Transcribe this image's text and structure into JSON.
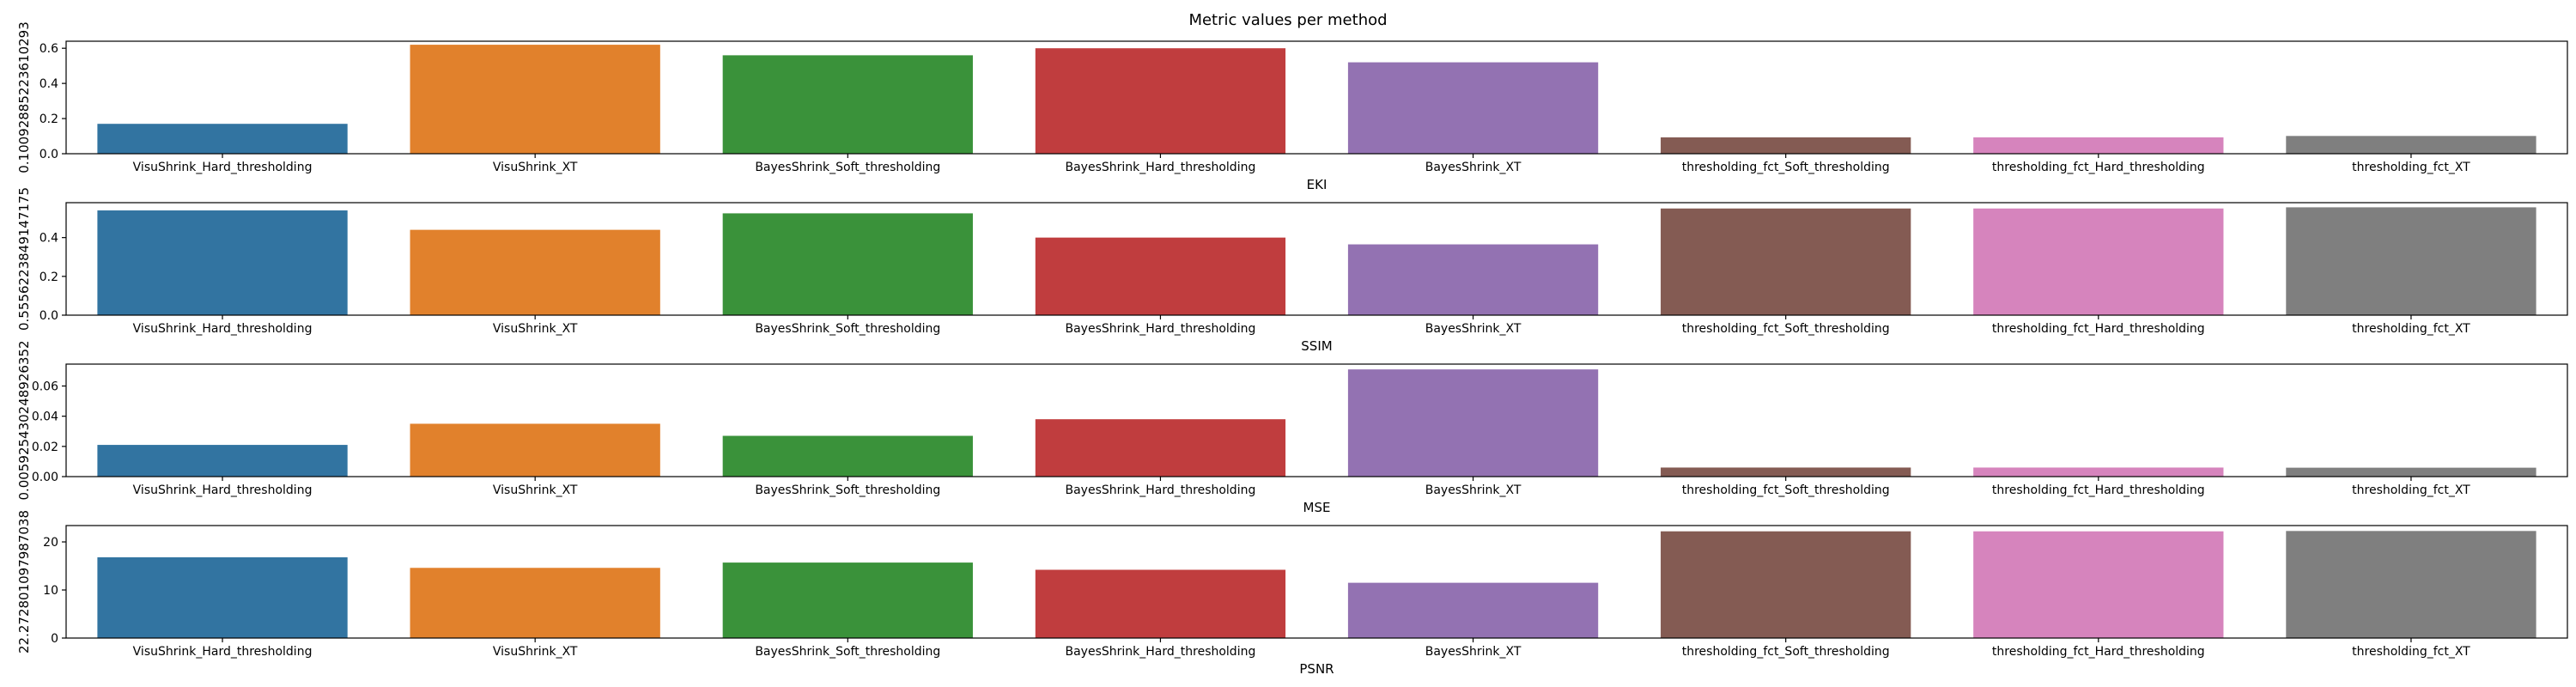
{
  "figure": {
    "title": "Metric values per method"
  },
  "chart_data": [
    {
      "type": "bar",
      "title": "",
      "xlabel": "EKI",
      "ylabel": "0.10092885223610293",
      "categories": [
        "VisuShrink_Hard_thresholding",
        "VisuShrink_XT",
        "BayesShrink_Soft_thresholding",
        "BayesShrink_Hard_thresholding",
        "BayesShrink_XT",
        "thresholding_fct_Soft_thresholding",
        "thresholding_fct_Hard_thresholding",
        "thresholding_fct_XT"
      ],
      "values": [
        0.17,
        0.62,
        0.56,
        0.6,
        0.52,
        0.093,
        0.093,
        0.101
      ],
      "ylim": [
        0,
        0.64
      ],
      "yticks": [
        0.0,
        0.2,
        0.4,
        0.6
      ],
      "ytick_labels": [
        "0.0",
        "0.2",
        "0.4",
        "0.6"
      ],
      "grid": false
    },
    {
      "type": "bar",
      "title": "",
      "xlabel": "SSIM",
      "ylabel": "0.5556223849147175",
      "categories": [
        "VisuShrink_Hard_thresholding",
        "VisuShrink_XT",
        "BayesShrink_Soft_thresholding",
        "BayesShrink_Hard_thresholding",
        "BayesShrink_XT",
        "thresholding_fct_Soft_thresholding",
        "thresholding_fct_Hard_thresholding",
        "thresholding_fct_XT"
      ],
      "values": [
        0.54,
        0.44,
        0.525,
        0.4,
        0.365,
        0.55,
        0.55,
        0.556
      ],
      "ylim": [
        0,
        0.58
      ],
      "yticks": [
        0.0,
        0.2,
        0.4
      ],
      "ytick_labels": [
        "0.0",
        "0.2",
        "0.4"
      ],
      "grid": false
    },
    {
      "type": "bar",
      "title": "",
      "xlabel": "MSE",
      "ylabel": "0.005925430248926352",
      "categories": [
        "VisuShrink_Hard_thresholding",
        "VisuShrink_XT",
        "BayesShrink_Soft_thresholding",
        "BayesShrink_Hard_thresholding",
        "BayesShrink_XT",
        "thresholding_fct_Soft_thresholding",
        "thresholding_fct_Hard_thresholding",
        "thresholding_fct_XT"
      ],
      "values": [
        0.021,
        0.035,
        0.027,
        0.038,
        0.071,
        0.006,
        0.006,
        0.0059
      ],
      "ylim": [
        0,
        0.0745
      ],
      "yticks": [
        0.0,
        0.02,
        0.04,
        0.06
      ],
      "ytick_labels": [
        "0.00",
        "0.02",
        "0.04",
        "0.06"
      ],
      "grid": false
    },
    {
      "type": "bar",
      "title": "",
      "xlabel": "PSNR",
      "ylabel": "22.272801097987038",
      "categories": [
        "VisuShrink_Hard_thresholding",
        "VisuShrink_XT",
        "BayesShrink_Soft_thresholding",
        "BayesShrink_Hard_thresholding",
        "BayesShrink_XT",
        "thresholding_fct_Soft_thresholding",
        "thresholding_fct_Hard_thresholding",
        "thresholding_fct_XT"
      ],
      "values": [
        16.8,
        14.6,
        15.7,
        14.2,
        11.5,
        22.2,
        22.2,
        22.27
      ],
      "ylim": [
        0,
        23.4
      ],
      "yticks": [
        0,
        10,
        20
      ],
      "ytick_labels": [
        "0",
        "10",
        "20"
      ],
      "grid": false
    }
  ],
  "colors": [
    "#3274a1",
    "#e1812c",
    "#3a923a",
    "#c03d3e",
    "#9372b2",
    "#845b53",
    "#d684bd",
    "#7f7f7f"
  ]
}
